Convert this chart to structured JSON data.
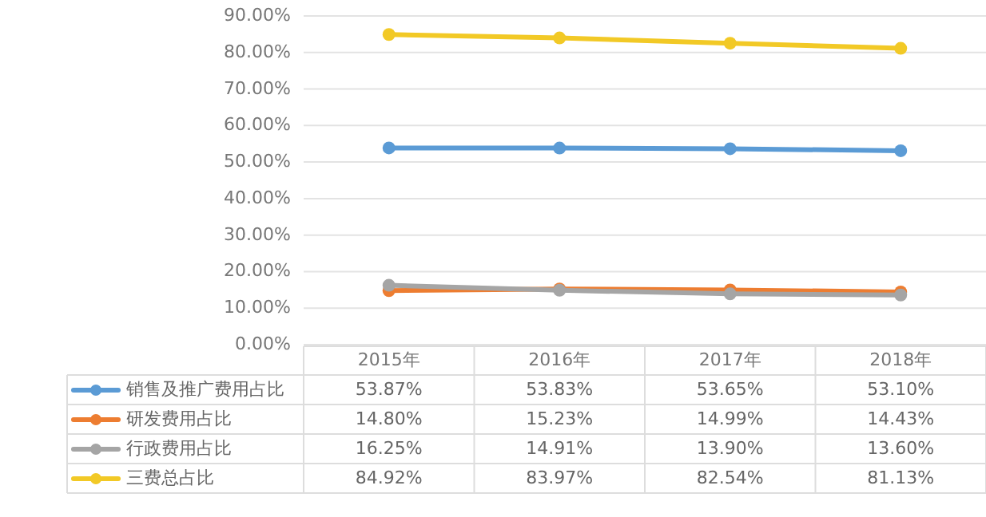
{
  "chart_data": {
    "type": "line",
    "categories": [
      "2015年",
      "2016年",
      "2017年",
      "2018年"
    ],
    "ylim": [
      0,
      90
    ],
    "yticks": [
      {
        "value": 0,
        "label": "0.00%"
      },
      {
        "value": 10,
        "label": "10.00%"
      },
      {
        "value": 20,
        "label": "20.00%"
      },
      {
        "value": 30,
        "label": "30.00%"
      },
      {
        "value": 40,
        "label": "40.00%"
      },
      {
        "value": 50,
        "label": "50.00%"
      },
      {
        "value": 60,
        "label": "60.00%"
      },
      {
        "value": 70,
        "label": "70.00%"
      },
      {
        "value": 80,
        "label": "80.00%"
      },
      {
        "value": 90,
        "label": "90.00%"
      }
    ],
    "grid": "y",
    "legend": "bottom",
    "marker": "circle",
    "line_style": "solid",
    "series": [
      {
        "name": "销售及推广费用占比",
        "color": "#5b9bd5",
        "values": [
          53.87,
          53.83,
          53.65,
          53.1
        ],
        "value_labels": [
          "53.87%",
          "53.83%",
          "53.65%",
          "53.10%"
        ]
      },
      {
        "name": "研发费用占比",
        "color": "#ed7d31",
        "values": [
          14.8,
          15.23,
          14.99,
          14.43
        ],
        "value_labels": [
          "14.80%",
          "15.23%",
          "14.99%",
          "14.43%"
        ]
      },
      {
        "name": "行政费用占比",
        "color": "#a5a5a5",
        "values": [
          16.25,
          14.91,
          13.9,
          13.6
        ],
        "value_labels": [
          "16.25%",
          "14.91%",
          "13.90%",
          "13.60%"
        ]
      },
      {
        "name": "三费总占比",
        "color": "#f2c926",
        "values": [
          84.92,
          83.97,
          82.54,
          81.13
        ],
        "value_labels": [
          "84.92%",
          "83.97%",
          "82.54%",
          "81.13%"
        ]
      }
    ]
  }
}
